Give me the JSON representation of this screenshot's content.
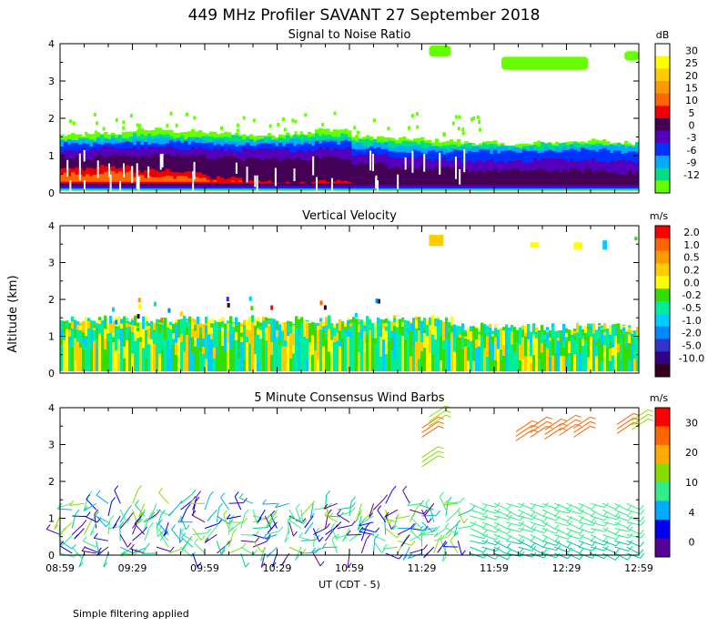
{
  "figure": {
    "title": "449 MHz Profiler SAVANT 27 September 2018",
    "ylabel": "Altitude (km)",
    "xlabel": "UT (CDT - 5)",
    "note": "Simple filtering applied"
  },
  "chart_data": [
    {
      "type": "heatmap",
      "title": "Signal to Noise Ratio",
      "ylim": [
        0,
        4
      ],
      "yticks": [
        "0",
        "1",
        "2",
        "3",
        "4"
      ],
      "xticks": [
        "08:59",
        "09:29",
        "09:59",
        "10:29",
        "10:59",
        "11:29",
        "11:59",
        "12:29",
        "12:59"
      ],
      "colorbar": {
        "unit": "dB",
        "labels": [
          "30",
          "25",
          "20",
          "15",
          "10",
          "5",
          "0",
          "-3",
          "-6",
          "-9",
          "-12"
        ],
        "colors": [
          "#ffffff",
          "#ffff00",
          "#ffcc00",
          "#ff9900",
          "#ff6600",
          "#ee0000",
          "#440055",
          "#5500bb",
          "#0033ff",
          "#00aaff",
          "#00dd88",
          "#66ff00"
        ]
      },
      "layers": [
        {
          "level": "-12",
          "color": "#66ff00",
          "top_km": [
            1.55,
            1.6,
            1.7,
            1.65,
            1.6,
            1.55,
            1.6,
            1.7,
            1.5,
            1.45,
            1.4,
            1.35,
            1.3,
            1.35,
            1.4,
            1.35
          ],
          "bottom_km": 0.05
        },
        {
          "level": "-9",
          "color": "#00dd88",
          "top_km": [
            1.45,
            1.5,
            1.55,
            1.5,
            1.5,
            1.45,
            1.5,
            1.55,
            1.4,
            1.35,
            1.3,
            1.3,
            1.25,
            1.3,
            1.3,
            1.3
          ],
          "bottom_km": 0.08
        },
        {
          "level": "-6",
          "color": "#00aaff",
          "top_km": [
            1.38,
            1.42,
            1.45,
            1.45,
            1.42,
            1.4,
            1.42,
            1.45,
            1.3,
            1.25,
            1.2,
            1.2,
            1.2,
            1.2,
            1.25,
            1.25
          ],
          "bottom_km": 0.1
        },
        {
          "level": "-3",
          "color": "#0033ff",
          "top_km": [
            1.3,
            1.35,
            1.35,
            1.35,
            1.3,
            1.3,
            1.3,
            1.35,
            1.2,
            1.1,
            1.1,
            1.1,
            1.1,
            1.1,
            1.15,
            1.1
          ],
          "bottom_km": 0.12
        },
        {
          "level": "0",
          "color": "#5500bb",
          "top_km": [
            1.15,
            1.2,
            1.2,
            1.2,
            1.15,
            1.15,
            1.15,
            1.2,
            1.05,
            0.95,
            0.9,
            0.85,
            0.85,
            0.9,
            0.9,
            0.85
          ],
          "bottom_km": 0.15
        },
        {
          "level": "5",
          "color": "#440055",
          "top_km": [
            0.95,
            1.0,
            1.0,
            1.0,
            0.95,
            0.9,
            0.9,
            0.95,
            0.8,
            0.7,
            0.65,
            0.6,
            0.6,
            0.6,
            0.6,
            0.55
          ],
          "bottom_km": 0.2
        },
        {
          "level": "10",
          "color": "#ee0000",
          "top_km": [
            0.65,
            0.7,
            0.6,
            0.55,
            0.4,
            0.3,
            0.25,
            0.3,
            0.2,
            0.0,
            0.0,
            0.0,
            0.0,
            0.0,
            0.0,
            0.0
          ],
          "bottom_km": 0.25
        },
        {
          "level": "15",
          "color": "#ff6600",
          "top_km": [
            0.5,
            0.55,
            0.45,
            0.4,
            0.3,
            0.0,
            0.0,
            0.0,
            0.0,
            0.0,
            0.0,
            0.0,
            0.0,
            0.0,
            0.0,
            0.0
          ],
          "bottom_km": 0.3
        }
      ],
      "upper_echoes": [
        {
          "x_hour": 2.55,
          "y_km": 3.65,
          "w_hour": 0.15,
          "h_km": 0.3,
          "color": "#66ff00"
        },
        {
          "x_hour": 3.05,
          "y_km": 3.3,
          "w_hour": 0.6,
          "h_km": 0.35,
          "color": "#66ff00"
        },
        {
          "x_hour": 3.9,
          "y_km": 3.55,
          "w_hour": 0.1,
          "h_km": 0.25,
          "color": "#66ff00"
        }
      ]
    },
    {
      "type": "heatmap",
      "title": "Vertical Velocity",
      "ylim": [
        0,
        4
      ],
      "yticks": [
        "0",
        "1",
        "2",
        "3",
        "4"
      ],
      "xticks": [
        "08:59",
        "09:29",
        "09:59",
        "10:29",
        "10:59",
        "11:29",
        "11:59",
        "12:29",
        "12:59"
      ],
      "colorbar": {
        "unit": "m/s",
        "labels": [
          "2.0",
          "1.0",
          "0.5",
          "0.2",
          "0.0",
          "-0.2",
          "-0.5",
          "-1.0",
          "-2.0",
          "-5.0",
          "-10.0"
        ],
        "colors": [
          "#ff0000",
          "#ff6600",
          "#ff9900",
          "#ffcc00",
          "#ffff00",
          "#33dd00",
          "#00ee99",
          "#00ccff",
          "#0088ff",
          "#3333cc",
          "#330088",
          "#330022"
        ]
      },
      "region": {
        "top_km": 1.3,
        "bottom_km": 0.05,
        "hours": 4.0
      },
      "upper_echoes": [
        {
          "x_hour": 2.55,
          "y_km": 3.45,
          "w_hour": 0.1,
          "h_km": 0.3,
          "color": "#ffcc00"
        },
        {
          "x_hour": 3.25,
          "y_km": 3.4,
          "w_hour": 0.06,
          "h_km": 0.15,
          "color": "#ffff00"
        },
        {
          "x_hour": 3.55,
          "y_km": 3.35,
          "w_hour": 0.06,
          "h_km": 0.2,
          "color": "#ffff00"
        },
        {
          "x_hour": 3.75,
          "y_km": 3.35,
          "w_hour": 0.03,
          "h_km": 0.25,
          "color": "#00ccff"
        },
        {
          "x_hour": 3.97,
          "y_km": 3.6,
          "w_hour": 0.02,
          "h_km": 0.1,
          "color": "#33dd00"
        }
      ]
    },
    {
      "type": "scatter",
      "title": "5 Minute Consensus Wind Barbs",
      "ylim": [
        0,
        4
      ],
      "yticks": [
        "0",
        "1",
        "2",
        "3",
        "4"
      ],
      "xticks": [
        "08:59",
        "09:29",
        "09:59",
        "10:29",
        "10:59",
        "11:29",
        "11:59",
        "12:29",
        "12:59"
      ],
      "colorbar": {
        "unit": "m/s",
        "labels": [
          "30",
          "20",
          "10",
          "4",
          "0"
        ],
        "colors": [
          "#ff0000",
          "#ff6600",
          "#ffaa00",
          "#88dd00",
          "#33ee88",
          "#00aaff",
          "#0000ee",
          "#550099"
        ]
      },
      "lower_barbs": {
        "top_km": 1.4,
        "bottom_km": 0.05,
        "hours": 4.0,
        "step_min": 5,
        "levels": 9
      },
      "upper_barbs": [
        {
          "x_hour": 2.5,
          "y_km": 3.2,
          "speed_ms": 24
        },
        {
          "x_hour": 2.55,
          "y_km": 3.5,
          "speed_ms": 14
        },
        {
          "x_hour": 2.5,
          "y_km": 2.4,
          "speed_ms": 12
        },
        {
          "x_hour": 3.15,
          "y_km": 3.1,
          "speed_ms": 22
        },
        {
          "x_hour": 3.25,
          "y_km": 3.2,
          "speed_ms": 23
        },
        {
          "x_hour": 3.35,
          "y_km": 3.15,
          "speed_ms": 24
        },
        {
          "x_hour": 3.45,
          "y_km": 3.25,
          "speed_ms": 22
        },
        {
          "x_hour": 3.55,
          "y_km": 3.2,
          "speed_ms": 25
        },
        {
          "x_hour": 3.85,
          "y_km": 3.3,
          "speed_ms": 24
        },
        {
          "x_hour": 3.95,
          "y_km": 3.4,
          "speed_ms": 18
        }
      ]
    }
  ]
}
